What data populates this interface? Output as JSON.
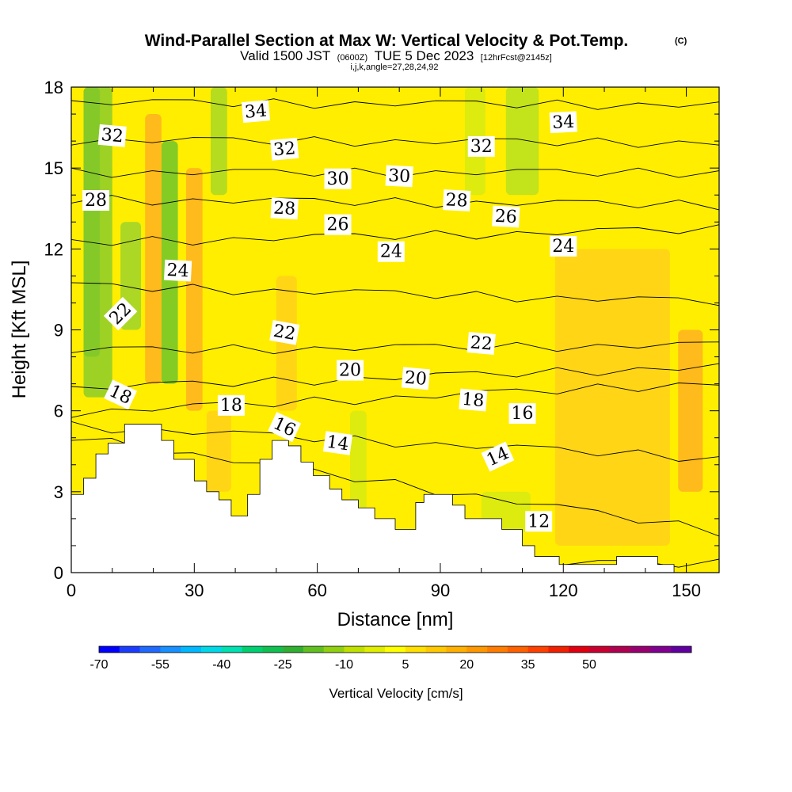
{
  "header": {
    "title": "Wind-Parallel Section at Max W: Vertical Velocity & Pot.Temp.",
    "copyright": "(C)",
    "valid_prefix": "Valid 1500 JST",
    "utc_time": "(0600Z)",
    "valid_date": "TUE 5 Dec 2023",
    "forecast_info": "[12hrFcst@2145z]",
    "params": "i,j,k,angle=27,28,24,92"
  },
  "chart_data": {
    "type": "heatmap",
    "xlabel": "Distance [nm]",
    "ylabel": "Height [Kft MSL]",
    "xlim": [
      0,
      158
    ],
    "ylim": [
      0,
      18
    ],
    "x_ticks": [
      {
        "value": 0,
        "label": "0"
      },
      {
        "value": 30,
        "label": "30"
      },
      {
        "value": 60,
        "label": "60"
      },
      {
        "value": 90,
        "label": "90"
      },
      {
        "value": 120,
        "label": "120"
      },
      {
        "value": 150,
        "label": "150"
      }
    ],
    "y_ticks": [
      {
        "value": 0,
        "label": "0"
      },
      {
        "value": 3,
        "label": "3"
      },
      {
        "value": 6,
        "label": "6"
      },
      {
        "value": 9,
        "label": "9"
      },
      {
        "value": 12,
        "label": "12"
      },
      {
        "value": 15,
        "label": "15"
      },
      {
        "value": 18,
        "label": "18"
      }
    ],
    "background_color": "#ffee00",
    "shading_bands": [
      {
        "x": 3,
        "width": 4,
        "ybot": 8,
        "ytop": 18,
        "value": -25,
        "color": "#3fa82a"
      },
      {
        "x": 3,
        "width": 7,
        "ybot": 6.5,
        "ytop": 18,
        "value": -15,
        "color": "#8ccc2a"
      },
      {
        "x": 12,
        "width": 5,
        "ybot": 9,
        "ytop": 13,
        "value": -15,
        "color": "#9ed42c"
      },
      {
        "x": 18,
        "width": 4,
        "ybot": 7,
        "ytop": 17,
        "value": 10,
        "color": "#ffb020"
      },
      {
        "x": 22,
        "width": 4,
        "ybot": 7,
        "ytop": 16,
        "value": -20,
        "color": "#6ec42a"
      },
      {
        "x": 28,
        "width": 4,
        "ybot": 6,
        "ytop": 15,
        "value": 10,
        "color": "#ffb020"
      },
      {
        "x": 34,
        "width": 4,
        "ybot": 14,
        "ytop": 18,
        "value": -10,
        "color": "#a8d824"
      },
      {
        "x": 33,
        "width": 6,
        "ybot": 3,
        "ytop": 6,
        "value": 5,
        "color": "#ffd01a"
      },
      {
        "x": 50,
        "width": 5,
        "ybot": 6,
        "ytop": 11,
        "value": 5,
        "color": "#ffd01a"
      },
      {
        "x": 68,
        "width": 4,
        "ybot": 2,
        "ytop": 6,
        "value": -5,
        "color": "#d8ea10"
      },
      {
        "x": 96,
        "width": 5,
        "ybot": 14,
        "ytop": 18,
        "value": -5,
        "color": "#d8ea10"
      },
      {
        "x": 106,
        "width": 8,
        "ybot": 14,
        "ytop": 18,
        "value": -10,
        "color": "#b8e020"
      },
      {
        "x": 100,
        "width": 12,
        "ybot": 1.5,
        "ytop": 3,
        "value": -5,
        "color": "#d8ea10"
      },
      {
        "x": 118,
        "width": 28,
        "ybot": 1,
        "ytop": 12,
        "value": 5,
        "color": "#ffd01a"
      },
      {
        "x": 148,
        "width": 6,
        "ybot": 3,
        "ytop": 9,
        "value": 10,
        "color": "#ffb020"
      }
    ],
    "terrain": {
      "x": [
        0,
        3,
        6,
        9,
        13,
        19,
        22,
        25,
        30,
        33,
        36,
        39,
        43,
        46,
        49,
        53,
        56,
        59,
        63,
        66,
        70,
        74,
        79,
        84,
        86,
        89,
        93,
        96,
        100,
        105,
        110,
        113,
        119,
        126,
        133,
        143,
        147,
        158
      ],
      "y": [
        2.9,
        3.5,
        4.4,
        4.8,
        5.5,
        5.5,
        4.9,
        4.2,
        3.4,
        3.0,
        2.7,
        2.1,
        2.9,
        4.2,
        4.9,
        4.7,
        4.1,
        3.6,
        3.1,
        2.7,
        2.4,
        2.0,
        1.6,
        2.6,
        2.9,
        2.9,
        2.5,
        2.0,
        2.0,
        1.6,
        1.0,
        0.6,
        0.3,
        0.3,
        0.6,
        0.3,
        0.0,
        0.0
      ]
    },
    "contours": [
      {
        "level": 12,
        "y_left": 0.3,
        "y_right": 0.3
      },
      {
        "level": 14,
        "y_left": 5.0,
        "y_right": 1.5
      },
      {
        "level": 16,
        "y_left": 5.4,
        "y_right": 4.2
      },
      {
        "level": 18,
        "y_left": 5.9,
        "y_right": 7.0
      },
      {
        "level": 20,
        "y_left": 6.8,
        "y_right": 7.6
      },
      {
        "level": 22,
        "y_left": 8.2,
        "y_right": 8.4
      },
      {
        "level": 24,
        "y_left": 10.6,
        "y_right": 10.0
      },
      {
        "level": 26,
        "y_left": 12.2,
        "y_right": 12.7
      },
      {
        "level": 28,
        "y_left": 13.8,
        "y_right": 13.6
      },
      {
        "level": 30,
        "y_left": 14.8,
        "y_right": 14.8
      },
      {
        "level": 32,
        "y_left": 16.0,
        "y_right": 15.9
      },
      {
        "level": 34,
        "y_left": 17.4,
        "y_right": 17.3
      }
    ],
    "contour_labels": [
      {
        "text": "34",
        "x": 45,
        "y": 17.1,
        "angle": 5
      },
      {
        "text": "34",
        "x": 120,
        "y": 16.7,
        "angle": 3
      },
      {
        "text": "32",
        "x": 10,
        "y": 16.2,
        "angle": -5
      },
      {
        "text": "32",
        "x": 52,
        "y": 15.7,
        "angle": 5
      },
      {
        "text": "32",
        "x": 100,
        "y": 15.8,
        "angle": 0
      },
      {
        "text": "30",
        "x": 65,
        "y": 14.6,
        "angle": 0
      },
      {
        "text": "30",
        "x": 80,
        "y": 14.7,
        "angle": -3
      },
      {
        "text": "28",
        "x": 6,
        "y": 13.8,
        "angle": 0
      },
      {
        "text": "28",
        "x": 52,
        "y": 13.5,
        "angle": -3
      },
      {
        "text": "28",
        "x": 94,
        "y": 13.8,
        "angle": -3
      },
      {
        "text": "26",
        "x": 65,
        "y": 12.9,
        "angle": 0
      },
      {
        "text": "26",
        "x": 106,
        "y": 13.2,
        "angle": -3
      },
      {
        "text": "24",
        "x": 26,
        "y": 11.2,
        "angle": -3
      },
      {
        "text": "24",
        "x": 78,
        "y": 11.9,
        "angle": 0
      },
      {
        "text": "24",
        "x": 120,
        "y": 12.1,
        "angle": 0
      },
      {
        "text": "22",
        "x": 12,
        "y": 9.6,
        "angle": 45
      },
      {
        "text": "22",
        "x": 52,
        "y": 8.9,
        "angle": -10
      },
      {
        "text": "22",
        "x": 100,
        "y": 8.5,
        "angle": -5
      },
      {
        "text": "20",
        "x": 68,
        "y": 7.5,
        "angle": 0
      },
      {
        "text": "20",
        "x": 84,
        "y": 7.2,
        "angle": -5
      },
      {
        "text": "18",
        "x": 12,
        "y": 6.6,
        "angle": -25
      },
      {
        "text": "18",
        "x": 39,
        "y": 6.2,
        "angle": 0
      },
      {
        "text": "18",
        "x": 98,
        "y": 6.4,
        "angle": -5
      },
      {
        "text": "16",
        "x": 52,
        "y": 5.4,
        "angle": -25
      },
      {
        "text": "16",
        "x": 110,
        "y": 5.9,
        "angle": 0
      },
      {
        "text": "14",
        "x": 65,
        "y": 4.8,
        "angle": -8
      },
      {
        "text": "14",
        "x": 104,
        "y": 4.3,
        "angle": 25
      },
      {
        "text": "12",
        "x": 114,
        "y": 1.9,
        "angle": 0
      }
    ],
    "colorbar": {
      "title": "Vertical Velocity [cm/s]",
      "min": -70,
      "step": 5,
      "colors": [
        "#0000ff",
        "#1a3cff",
        "#2068ff",
        "#1890ff",
        "#00b8ff",
        "#00d8e8",
        "#00e0b0",
        "#00d070",
        "#10c050",
        "#30b030",
        "#60c020",
        "#90d010",
        "#c0e000",
        "#e0ee00",
        "#ffff00",
        "#ffe000",
        "#ffc800",
        "#ffb000",
        "#ff9800",
        "#ff7c00",
        "#ff6000",
        "#ff4000",
        "#f02000",
        "#e00010",
        "#c80030",
        "#b00050",
        "#980070",
        "#800090",
        "#6000a0"
      ],
      "tick_labels": [
        "-70",
        "-55",
        "-40",
        "-25",
        "-10",
        "5",
        "20",
        "35",
        "50"
      ]
    }
  }
}
